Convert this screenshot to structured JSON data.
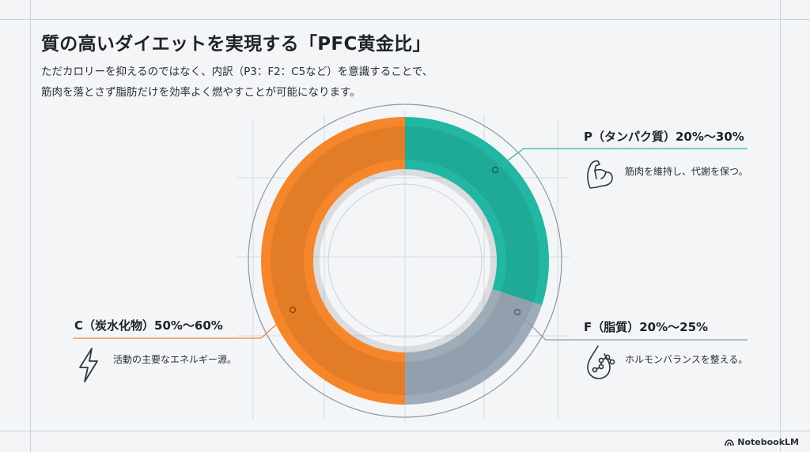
{
  "header": {
    "title": "質の高いダイエットを実現する「PFC黄金比」",
    "subtitle_lines": [
      "ただカロリーを抑えるのではなく、内訳（P3：F2：C5など）を意識することで、",
      "筋肉を落とさず脂肪だけを効率よく燃やすことが可能になります。"
    ]
  },
  "chart_data": {
    "type": "pie",
    "variant": "donut",
    "categories": [
      "P（タンパク質）20%〜30%",
      "F（脂質）20%〜25%",
      "C（炭水化物）50%〜60%"
    ],
    "values": [
      3,
      2,
      5
    ],
    "colors": [
      "#22b7a3",
      "#9eacba",
      "#f5862a"
    ],
    "descriptions": [
      "筋肉を維持し、代謝を保つ。",
      "ホルモンバランスを整える。",
      "活動の主要なエネルギー源。"
    ],
    "icons": [
      "muscle-arm-icon",
      "water-drop-molecule-icon",
      "lightning-bolt-icon"
    ]
  },
  "footer": {
    "brand": "NotebookLM"
  }
}
